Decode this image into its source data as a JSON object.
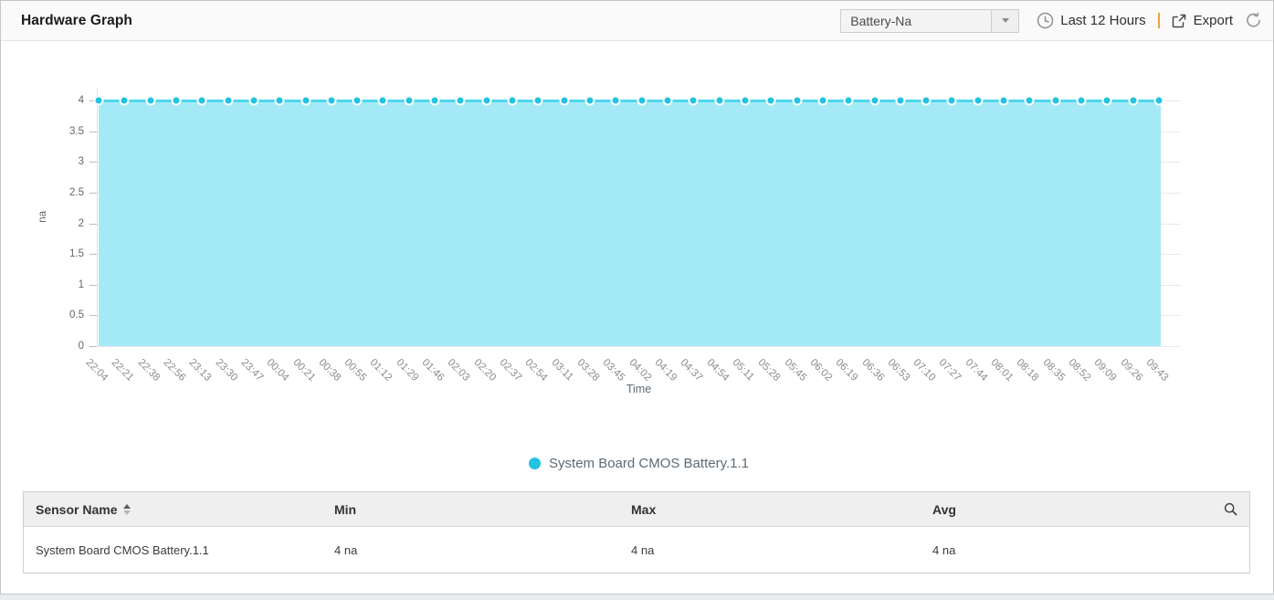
{
  "header": {
    "title": "Hardware Graph",
    "sensor_dropdown": {
      "value": "Battery-Na"
    },
    "time_range_label": "Last 12 Hours",
    "export_label": "Export",
    "icons": [
      "clock-icon",
      "export-icon",
      "refresh-icon",
      "chevron-down-icon"
    ]
  },
  "chart_data": {
    "type": "area",
    "title": "",
    "xlabel": "Time",
    "ylabel": "na",
    "ylim": [
      0,
      4
    ],
    "yticks": [
      0,
      0.5,
      1,
      1.5,
      2,
      2.5,
      3,
      3.5,
      4
    ],
    "grid": true,
    "legend_position": "bottom",
    "categories": [
      "22:04",
      "22:21",
      "22:38",
      "22:56",
      "23:13",
      "23:30",
      "23:47",
      "00:04",
      "00:21",
      "00:38",
      "00:55",
      "01:12",
      "01:29",
      "01:46",
      "02:03",
      "02:20",
      "02:37",
      "02:54",
      "03:11",
      "03:28",
      "03:45",
      "04:02",
      "04:19",
      "04:37",
      "04:54",
      "05:11",
      "05:28",
      "05:45",
      "06:02",
      "06:19",
      "06:36",
      "06:53",
      "07:10",
      "07:27",
      "07:44",
      "08:01",
      "08:18",
      "08:35",
      "08:52",
      "09:09",
      "09:26",
      "09:43"
    ],
    "series": [
      {
        "name": "System Board CMOS Battery.1.1",
        "values": [
          4,
          4,
          4,
          4,
          4,
          4,
          4,
          4,
          4,
          4,
          4,
          4,
          4,
          4,
          4,
          4,
          4,
          4,
          4,
          4,
          4,
          4,
          4,
          4,
          4,
          4,
          4,
          4,
          4,
          4,
          4,
          4,
          4,
          4,
          4,
          4,
          4,
          4,
          4,
          4,
          4,
          4
        ]
      }
    ],
    "colors": {
      "marker": "#22c3e1",
      "line": "#4ed7ee",
      "fill": "#a4eaf6"
    }
  },
  "legend": {
    "items": [
      {
        "label": "System Board CMOS Battery.1.1",
        "color": "#22c3e1"
      }
    ]
  },
  "table": {
    "columns": [
      "Sensor Name",
      "Min",
      "Max",
      "Avg"
    ],
    "rows": [
      {
        "sensor": "System Board CMOS Battery.1.1",
        "min": "4 na",
        "max": "4 na",
        "avg": "4 na"
      }
    ]
  },
  "colors": {
    "accent_orange": "#e8a23c",
    "header_bg": "#fafafa",
    "table_header_bg": "#efefef"
  }
}
